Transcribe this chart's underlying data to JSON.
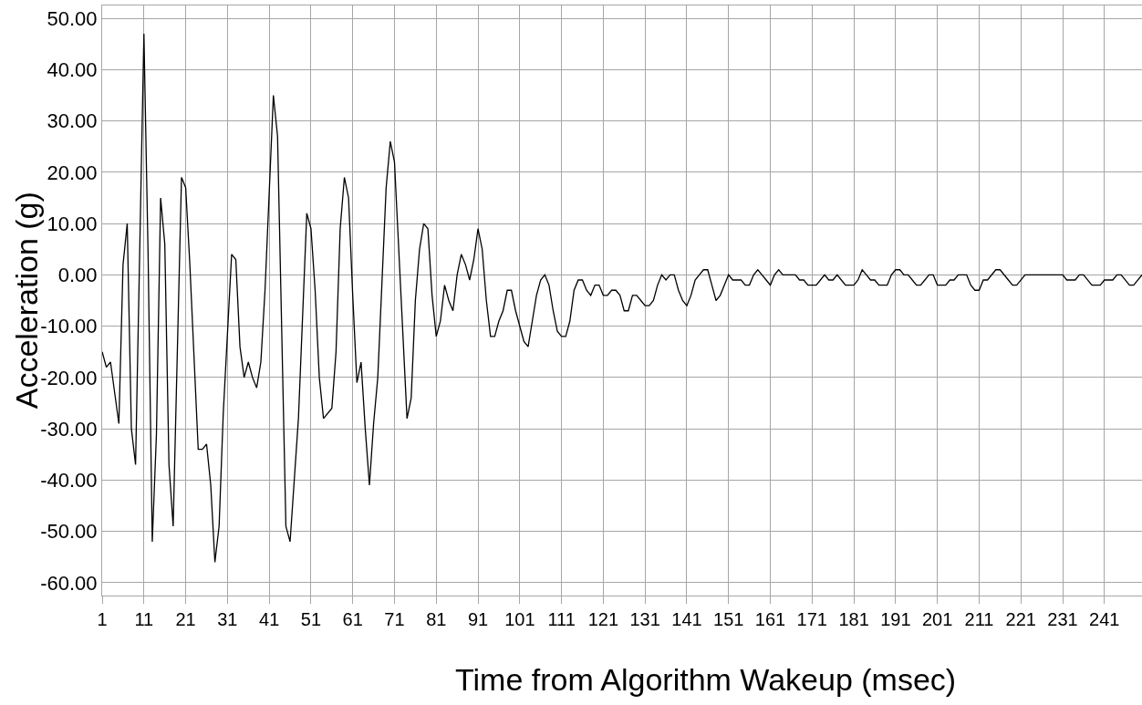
{
  "chart_data": {
    "type": "line",
    "xlabel": "Time from Algorithm Wakeup (msec)",
    "ylabel": "Acceleration (g)",
    "xlim": [
      1,
      250
    ],
    "xticks": [
      1,
      11,
      21,
      31,
      41,
      51,
      61,
      71,
      81,
      91,
      101,
      111,
      121,
      131,
      141,
      151,
      161,
      171,
      181,
      191,
      201,
      211,
      221,
      231,
      241
    ],
    "ylim": [
      -62.5,
      52.5
    ],
    "yticks": [
      {
        "value": 50,
        "label": "50.00"
      },
      {
        "value": 40,
        "label": "40.00"
      },
      {
        "value": 30,
        "label": "30.00"
      },
      {
        "value": 20,
        "label": "20.00"
      },
      {
        "value": 10,
        "label": "10.00"
      },
      {
        "value": 0,
        "label": "0.00"
      },
      {
        "value": -10,
        "label": "-10.00"
      },
      {
        "value": -20,
        "label": "-20.00"
      },
      {
        "value": -30,
        "label": "-30.00"
      },
      {
        "value": -40,
        "label": "-40.00"
      },
      {
        "value": -50,
        "label": "-50.00"
      },
      {
        "value": -60,
        "label": "-60.00"
      }
    ],
    "grid": true,
    "marker": "none",
    "line_style": "solid",
    "series": [
      {
        "color": "#000000",
        "x": [
          1,
          2,
          3,
          5,
          6,
          7,
          8,
          9,
          11,
          12,
          13,
          14,
          15,
          16,
          17,
          18,
          20,
          21,
          22,
          24,
          25,
          26,
          27,
          28,
          29,
          30,
          32,
          33,
          34,
          35,
          36,
          37,
          38,
          39,
          40,
          42,
          43,
          45,
          46,
          48,
          50,
          51,
          52,
          53,
          54,
          56,
          57,
          58,
          59,
          60,
          61,
          62,
          63,
          64,
          65,
          66,
          67,
          69,
          70,
          71,
          74,
          75,
          76,
          77,
          78,
          79,
          80,
          81,
          82,
          83,
          84,
          85,
          86,
          87,
          88,
          89,
          90,
          91,
          92,
          93,
          94,
          95,
          96,
          97,
          98,
          99,
          100,
          102,
          103,
          104,
          105,
          106,
          107,
          108,
          109,
          110,
          111,
          112,
          113,
          114,
          115,
          116,
          117,
          118,
          119,
          120,
          121,
          122,
          123,
          124,
          125,
          126,
          127,
          128,
          129,
          130,
          131,
          132,
          133,
          134,
          135,
          136,
          137,
          138,
          139,
          140,
          141,
          142,
          143,
          144,
          145,
          146,
          147,
          148,
          149,
          150,
          151,
          152,
          154,
          155,
          156,
          157,
          158,
          159,
          160,
          161,
          162,
          163,
          164,
          167,
          168,
          169,
          170,
          172,
          173,
          174,
          175,
          176,
          177,
          178,
          179,
          181,
          182,
          183,
          184,
          185,
          186,
          187,
          189,
          190,
          191,
          192,
          193,
          194,
          195,
          196,
          197,
          198,
          199,
          200,
          201,
          203,
          204,
          205,
          206,
          208,
          209,
          210,
          211,
          212,
          213,
          215,
          216,
          218,
          219,
          220,
          222,
          231,
          232,
          234,
          235,
          236,
          238,
          240,
          241,
          243,
          244,
          245,
          247,
          248,
          250
        ],
        "values": [
          -15,
          -18,
          -17,
          -29,
          2,
          10,
          -30,
          -37,
          47,
          4,
          -52,
          -31,
          15,
          6,
          -37,
          -49,
          19,
          17,
          2,
          -34,
          -34,
          -33,
          -41,
          -56,
          -49,
          -27,
          4,
          3,
          -14,
          -20,
          -17,
          -20,
          -22,
          -17,
          -3,
          35,
          27,
          -49,
          -52,
          -28,
          12,
          9,
          -3,
          -20,
          -28,
          -26,
          -15,
          9,
          19,
          15,
          -4,
          -21,
          -17,
          -30,
          -41,
          -29,
          -20,
          17,
          26,
          22,
          -28,
          -24,
          -5,
          5,
          10,
          9,
          -4,
          -12,
          -9,
          -2,
          -5,
          -7,
          0,
          4,
          2,
          -1,
          3,
          9,
          5,
          -5,
          -12,
          -12,
          -9,
          -7,
          -3,
          -3,
          -7,
          -13,
          -14,
          -9,
          -4,
          -1,
          0,
          -2,
          -7,
          -11,
          -12,
          -12,
          -9,
          -3,
          -1,
          -1,
          -3,
          -4,
          -2,
          -2,
          -4,
          -4,
          -3,
          -3,
          -4,
          -7,
          -7,
          -4,
          -4,
          -5,
          -6,
          -6,
          -5,
          -2,
          0,
          -1,
          0,
          0,
          -3,
          -5,
          -6,
          -4,
          -1,
          0,
          1,
          1,
          -2,
          -5,
          -4,
          -2,
          0,
          -1,
          -1,
          -2,
          -2,
          0,
          1,
          0,
          -1,
          -2,
          0,
          1,
          0,
          0,
          -1,
          -1,
          -2,
          -2,
          -1,
          0,
          -1,
          -1,
          0,
          -1,
          -2,
          -2,
          -1,
          1,
          0,
          -1,
          -1,
          -2,
          -2,
          0,
          1,
          1,
          0,
          0,
          -1,
          -2,
          -2,
          -1,
          0,
          0,
          -2,
          -2,
          -1,
          -1,
          0,
          0,
          -2,
          -3,
          -3,
          -1,
          -1,
          1,
          1,
          -1,
          -2,
          -2,
          0,
          0,
          -1,
          -1,
          0,
          0,
          -2,
          -2,
          -1,
          -1,
          0,
          0,
          -2,
          -2,
          0
        ]
      }
    ]
  }
}
